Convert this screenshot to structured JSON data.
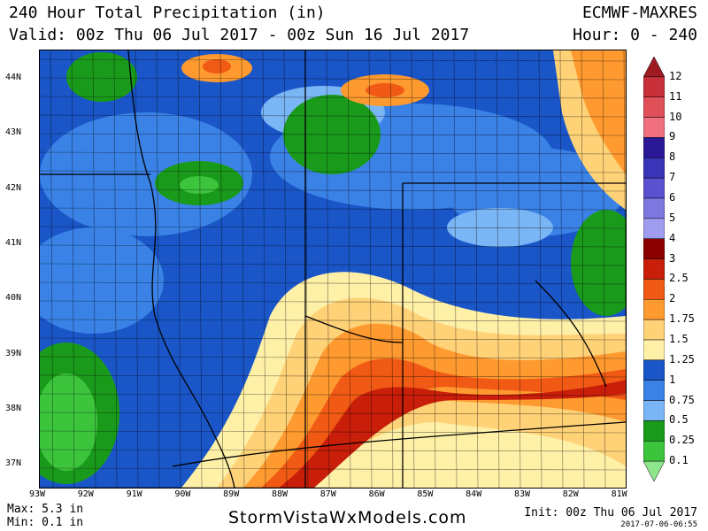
{
  "header": {
    "title": "240 Hour Total Precipitation (in)",
    "valid": "Valid: 00z Thu 06 Jul 2017 - 00z Sun 16 Jul 2017",
    "model": "ECMWF-MAXRES",
    "hour": "Hour: 0 - 240"
  },
  "map": {
    "lat_labels": [
      "44N",
      "43N",
      "42N",
      "41N",
      "40N",
      "39N",
      "38N",
      "37N"
    ],
    "lon_labels": [
      "93W",
      "92W",
      "91W",
      "90W",
      "89W",
      "88W",
      "87W",
      "86W",
      "85W",
      "84W",
      "83W",
      "82W",
      "81W"
    ]
  },
  "legend": {
    "levels": [
      "12",
      "11",
      "10",
      "9",
      "8",
      "7",
      "6",
      "5",
      "4",
      "3",
      "2.5",
      "2",
      "1.75",
      "1.5",
      "1.25",
      "1",
      "0.75",
      "0.5",
      "0.25",
      "0.1"
    ],
    "colors": [
      "#a01a22",
      "#c8303a",
      "#e05058",
      "#f07080",
      "#2a1896",
      "#3a34b8",
      "#5a50d0",
      "#7c78e0",
      "#a09cf0",
      "#8c0000",
      "#c81e0a",
      "#f05a14",
      "#ff9a30",
      "#ffd278",
      "#fff0a8",
      "#1a56c8",
      "#3a82e6",
      "#7ab6f5",
      "#1a9a1a",
      "#3cc43c",
      "#8ce68c"
    ]
  },
  "footer": {
    "max": "Max: 5.3 in",
    "min": "Min: 0.1 in",
    "site": "StormVistaWxModels.com",
    "init": "Init: 00z Thu 06 Jul 2017",
    "stamp": "2017-07-06-06:55"
  }
}
